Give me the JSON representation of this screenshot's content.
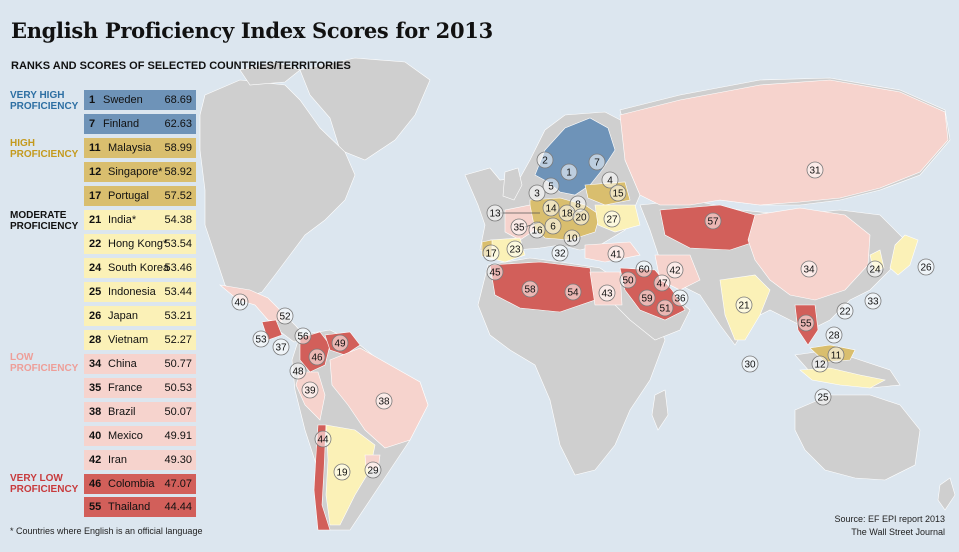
{
  "title": "English Proficiency Index Scores for 2013",
  "subtitle": "RANKS AND SCORES OF SELECTED COUNTRIES/TERRITORIES",
  "colors": {
    "very_high": "#6e93b8",
    "high": "#d9be6e",
    "moderate": "#fbf1b7",
    "low": "#f6d3cd",
    "very_low": "#d25f5a",
    "very_high_text": "#2d6fa3",
    "high_text": "#c49a1e",
    "low_text": "#ee9e98",
    "very_low_text": "#c83a3c",
    "ocean": "#dce6ef",
    "land_unranked": "#cfcfcf"
  },
  "categories": [
    {
      "key": "very_high",
      "label": "VERY HIGH\nPROFICIENCY"
    },
    {
      "key": "high",
      "label": "HIGH\nPROFICIENCY"
    },
    {
      "key": "moderate",
      "label": "MODERATE\nPROFICIENCY"
    },
    {
      "key": "low",
      "label": "LOW\nPROFICIENCY"
    },
    {
      "key": "very_low",
      "label": "VERY LOW\nPROFICIENCY"
    }
  ],
  "table": [
    {
      "rank": "1",
      "name": "Sweden",
      "score": "68.69",
      "cat": "very_high"
    },
    {
      "rank": "7",
      "name": "Finland",
      "score": "62.63",
      "cat": "very_high"
    },
    {
      "rank": "11",
      "name": "Malaysia",
      "score": "58.99",
      "cat": "high"
    },
    {
      "rank": "12",
      "name": "Singapore*",
      "score": "58.92",
      "cat": "high"
    },
    {
      "rank": "17",
      "name": "Portugal",
      "score": "57.52",
      "cat": "high"
    },
    {
      "rank": "21",
      "name": "India*",
      "score": "54.38",
      "cat": "moderate"
    },
    {
      "rank": "22",
      "name": "Hong Kong*",
      "score": "53.54",
      "cat": "moderate"
    },
    {
      "rank": "24",
      "name": "South Korea",
      "score": "53.46",
      "cat": "moderate"
    },
    {
      "rank": "25",
      "name": "Indonesia",
      "score": "53.44",
      "cat": "moderate"
    },
    {
      "rank": "26",
      "name": "Japan",
      "score": "53.21",
      "cat": "moderate"
    },
    {
      "rank": "28",
      "name": "Vietnam",
      "score": "52.27",
      "cat": "moderate"
    },
    {
      "rank": "34",
      "name": "China",
      "score": "50.77",
      "cat": "low"
    },
    {
      "rank": "35",
      "name": "France",
      "score": "50.53",
      "cat": "low"
    },
    {
      "rank": "38",
      "name": "Brazil",
      "score": "50.07",
      "cat": "low"
    },
    {
      "rank": "40",
      "name": "Mexico",
      "score": "49.91",
      "cat": "low"
    },
    {
      "rank": "42",
      "name": "Iran",
      "score": "49.30",
      "cat": "low"
    },
    {
      "rank": "46",
      "name": "Colombia",
      "score": "47.07",
      "cat": "very_low"
    },
    {
      "rank": "55",
      "name": "Thailand",
      "score": "44.44",
      "cat": "very_low"
    }
  ],
  "map_ranks": [
    "1",
    "2",
    "3",
    "4",
    "5",
    "6",
    "7",
    "8",
    "10",
    "11",
    "12",
    "13",
    "14",
    "15",
    "16",
    "17",
    "18",
    "19",
    "20",
    "21",
    "22",
    "23",
    "24",
    "25",
    "26",
    "27",
    "28",
    "29",
    "30",
    "31",
    "32",
    "33",
    "34",
    "35",
    "36",
    "37",
    "38",
    "39",
    "40",
    "41",
    "42",
    "43",
    "44",
    "45",
    "46",
    "47",
    "48",
    "49",
    "50",
    "51",
    "52",
    "53",
    "54",
    "55",
    "56",
    "57",
    "58",
    "59",
    "60"
  ],
  "footnote": "* Countries where English is an official language",
  "source_line1": "Source: EF EPI report 2013",
  "source_line2": "The Wall Street Journal"
}
